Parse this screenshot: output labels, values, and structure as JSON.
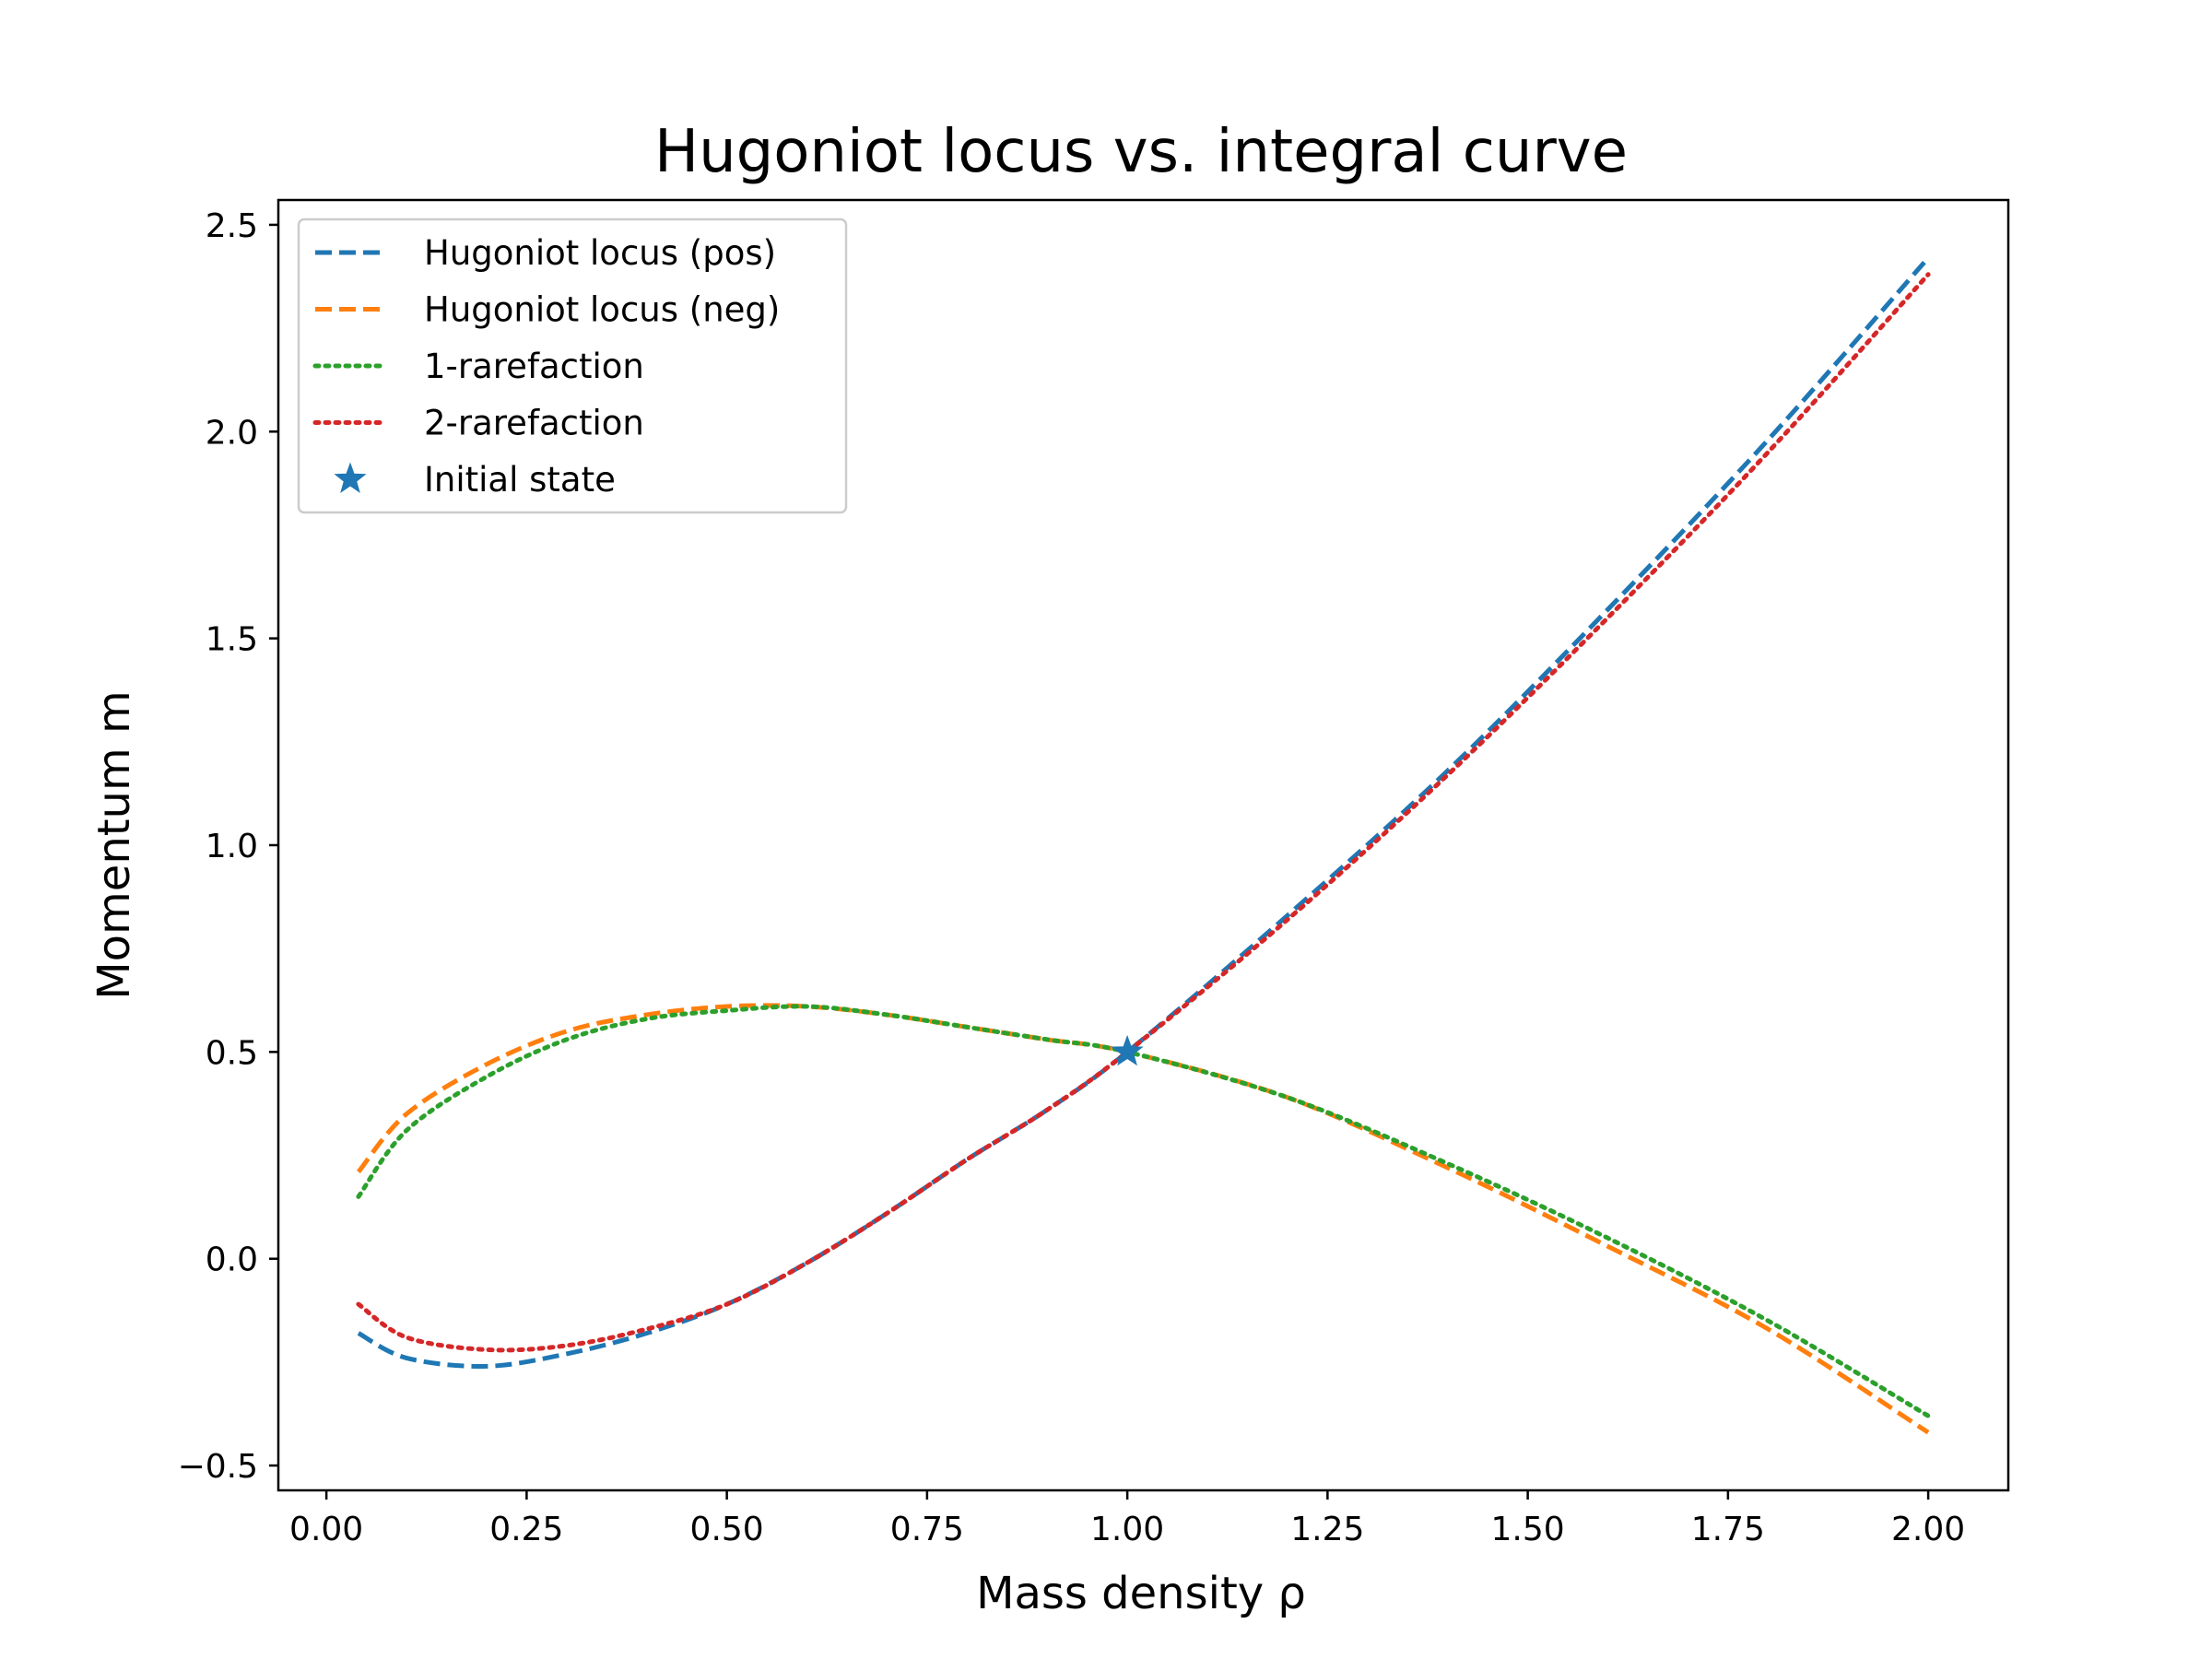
{
  "chart_data": {
    "type": "line",
    "title": "Hugoniot locus vs. integral curve",
    "xlabel": "Mass density ρ",
    "ylabel": "Momentum m",
    "xlim": [
      -0.06,
      2.1
    ],
    "ylim": [
      -0.56,
      2.56
    ],
    "xticks": [
      0.0,
      0.25,
      0.5,
      0.75,
      1.0,
      1.25,
      1.5,
      1.75,
      2.0
    ],
    "xtick_labels": [
      "0.00",
      "0.25",
      "0.50",
      "0.75",
      "1.00",
      "1.25",
      "1.50",
      "1.75",
      "2.00"
    ],
    "yticks": [
      -0.5,
      0.0,
      0.5,
      1.0,
      1.5,
      2.0,
      2.5
    ],
    "ytick_labels": [
      "−0.5",
      "0.0",
      "0.5",
      "1.0",
      "1.5",
      "2.0",
      "2.5"
    ],
    "grid": false,
    "legend_position": "top-left",
    "series": [
      {
        "name": "Hugoniot locus (pos)",
        "color": "#1f77b4",
        "style": "dashed",
        "x": [
          0.04,
          0.1,
          0.2,
          0.3,
          0.4,
          0.5,
          0.6,
          0.7,
          0.8,
          0.9,
          1.0,
          1.2,
          1.4,
          1.6,
          1.8,
          2.0
        ],
        "y": [
          -0.18,
          -0.24,
          -0.26,
          -0.23,
          -0.18,
          -0.11,
          -0.01,
          0.11,
          0.24,
          0.36,
          0.5,
          0.83,
          1.18,
          1.57,
          1.98,
          2.42
        ]
      },
      {
        "name": "Hugoniot locus (neg)",
        "color": "#ff7f0e",
        "style": "dashed",
        "x": [
          0.04,
          0.1,
          0.2,
          0.3,
          0.4,
          0.5,
          0.6,
          0.7,
          0.8,
          0.9,
          1.0,
          1.2,
          1.4,
          1.6,
          1.8,
          2.0
        ],
        "y": [
          0.21,
          0.35,
          0.47,
          0.55,
          0.59,
          0.61,
          0.61,
          0.59,
          0.56,
          0.53,
          0.5,
          0.39,
          0.22,
          0.03,
          -0.17,
          -0.42
        ]
      },
      {
        "name": "1-rarefaction",
        "color": "#2ca02c",
        "style": "dotted",
        "x": [
          0.04,
          0.1,
          0.2,
          0.3,
          0.4,
          0.5,
          0.6,
          0.7,
          0.8,
          0.9,
          1.0,
          1.2,
          1.4,
          1.6,
          1.8,
          2.0
        ],
        "y": [
          0.15,
          0.31,
          0.44,
          0.53,
          0.58,
          0.6,
          0.61,
          0.59,
          0.56,
          0.53,
          0.5,
          0.39,
          0.23,
          0.05,
          -0.15,
          -0.38
        ]
      },
      {
        "name": "2-rarefaction",
        "color": "#d62728",
        "style": "dotted",
        "x": [
          0.04,
          0.1,
          0.2,
          0.3,
          0.4,
          0.5,
          0.6,
          0.7,
          0.8,
          0.9,
          1.0,
          1.2,
          1.4,
          1.6,
          1.8,
          2.0
        ],
        "y": [
          -0.11,
          -0.19,
          -0.22,
          -0.21,
          -0.17,
          -0.11,
          -0.01,
          0.11,
          0.24,
          0.36,
          0.5,
          0.82,
          1.17,
          1.55,
          1.95,
          2.38
        ]
      }
    ],
    "points": [
      {
        "name": "Initial state",
        "color": "#1f77b4",
        "marker": "star",
        "x": 1.0,
        "y": 0.5
      }
    ]
  }
}
